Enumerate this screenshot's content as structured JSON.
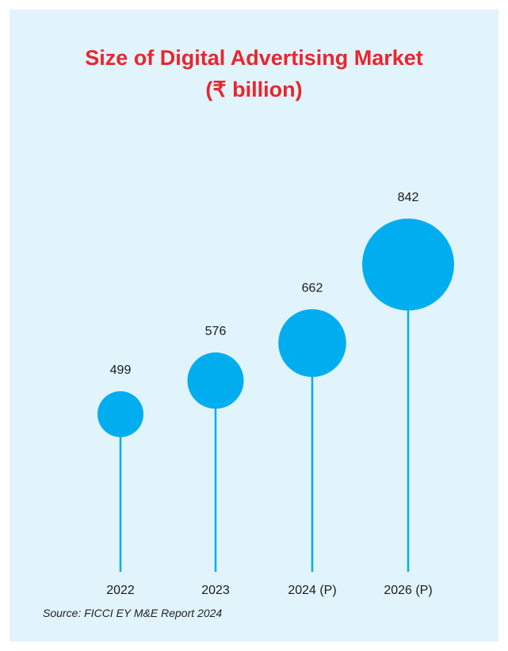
{
  "chart_data": {
    "type": "scatter",
    "title": "Size of Digital Advertising Market",
    "subtitle": "(₹ billion)",
    "categories": [
      "2022",
      "2023",
      "2024 (P)",
      "2026 (P)"
    ],
    "values": [
      499,
      576,
      662,
      842
    ],
    "ylabel": "",
    "xlabel": "",
    "ylim": [
      0,
      1000
    ],
    "grid": false,
    "legend": "none"
  },
  "source": "Source: FICCI EY M&E Report 2024",
  "colors": {
    "background": "#e1f3fb",
    "title": "#e8262c",
    "bubble": "#00aeef",
    "stem": "#00aeef"
  }
}
